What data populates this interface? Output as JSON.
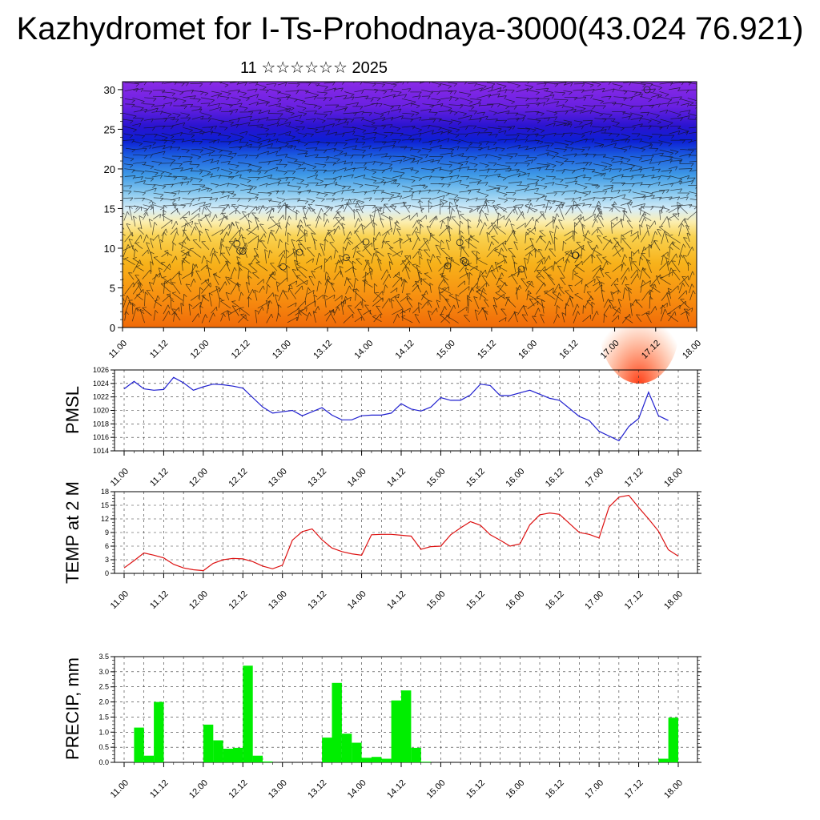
{
  "title": "Kazhydromet for I-Ts-Prohodnaya-3000(43.024 76.921)",
  "subtitle": "11 ☆☆☆☆☆☆ 2025",
  "colors": {
    "pmsl": "#1f1fcf",
    "temp": "#dd1111",
    "precip": "#00ee00"
  },
  "chart_data": [
    {
      "type": "heatmap",
      "title": "",
      "xlabel": "",
      "ylabel": "",
      "x_ticks": [
        "11.00",
        "11.12",
        "12.00",
        "12.12",
        "13.00",
        "13.12",
        "14.00",
        "14.12",
        "15.00",
        "15.12",
        "16.00",
        "16.12",
        "17.00",
        "17.12",
        "18.00"
      ],
      "y_ticks": [
        "0",
        "5",
        "10",
        "15",
        "20",
        "25",
        "30"
      ],
      "ylim": [
        0,
        31
      ],
      "description_bands": [
        {
          "level_range": [
            0,
            12
          ],
          "color": "orange-yellow"
        },
        {
          "level_range": [
            12,
            17
          ],
          "color": "light-yellow/light-blue"
        },
        {
          "level_range": [
            17,
            27
          ],
          "color": "blue"
        },
        {
          "level_range": [
            27,
            31
          ],
          "color": "purple"
        }
      ]
    },
    {
      "type": "line",
      "ylabel": "PMSL",
      "ylim": [
        1014,
        1026
      ],
      "y_ticks": [
        "1014",
        "1016",
        "1018",
        "1020",
        "1022",
        "1024",
        "1026"
      ],
      "x_ticks": [
        "11.00",
        "11.12",
        "12.00",
        "12.12",
        "13.00",
        "13.12",
        "14.00",
        "14.12",
        "15.00",
        "15.12",
        "16.00",
        "16.12",
        "17.00",
        "17.12",
        "18.00"
      ],
      "series": [
        {
          "values": [
            1023.2,
            1024.3,
            1023.2,
            1023.0,
            1023.1,
            1024.9,
            1024.1,
            1023.0,
            1023.5,
            1023.9,
            1023.8,
            1023.6,
            1023.3,
            1021.9,
            1020.5,
            1019.6,
            1019.8,
            1020.0,
            1019.2,
            1019.8,
            1020.4,
            1019.3,
            1018.6,
            1018.6,
            1019.2,
            1019.3,
            1019.3,
            1019.6,
            1021.0,
            1020.2,
            1019.9,
            1020.5,
            1021.9,
            1021.5,
            1021.5,
            1022.3,
            1023.9,
            1023.7,
            1022.2,
            1022.2,
            1022.6,
            1023.0,
            1022.4,
            1021.8,
            1021.5,
            1020.3,
            1019.1,
            1018.5,
            1016.9,
            1016.2,
            1015.5,
            1017.6,
            1018.8,
            1022.7,
            1019.2,
            1018.5
          ]
        }
      ]
    },
    {
      "type": "line",
      "ylabel": "TEMP at 2 M",
      "ylim": [
        0,
        18
      ],
      "y_ticks": [
        "0",
        "3",
        "6",
        "9",
        "12",
        "15",
        "18"
      ],
      "x_ticks": [
        "11.00",
        "11.12",
        "12.00",
        "12.12",
        "13.00",
        "13.12",
        "14.00",
        "14.12",
        "15.00",
        "15.12",
        "16.00",
        "16.12",
        "17.00",
        "17.12",
        "18.00"
      ],
      "series": [
        {
          "values": [
            1.2,
            2.8,
            4.5,
            4.0,
            3.4,
            2.0,
            1.2,
            0.8,
            0.6,
            2.2,
            3.0,
            3.3,
            3.2,
            2.6,
            1.6,
            1.0,
            1.8,
            7.3,
            9.2,
            9.8,
            7.4,
            5.6,
            4.8,
            4.3,
            4.0,
            8.5,
            8.6,
            8.6,
            8.4,
            8.2,
            5.3,
            5.9,
            6.0,
            8.5,
            10.0,
            11.4,
            10.6,
            8.5,
            7.3,
            6.0,
            6.5,
            10.7,
            12.9,
            13.3,
            13.0,
            11.0,
            9.0,
            8.6,
            7.8,
            14.6,
            16.8,
            17.2,
            14.5,
            12.0,
            9.3,
            5.2,
            3.8
          ]
        }
      ]
    },
    {
      "type": "bar",
      "ylabel": "PRECIP, mm",
      "ylim": [
        0,
        3.5
      ],
      "y_ticks": [
        "0.0",
        "0.5",
        "1.0",
        "1.5",
        "2.0",
        "2.5",
        "3.0",
        "3.5"
      ],
      "x_ticks": [
        "11.00",
        "11.12",
        "12.00",
        "12.12",
        "13.00",
        "13.12",
        "14.00",
        "14.12",
        "15.00",
        "15.12",
        "16.00",
        "16.12",
        "17.00",
        "17.12",
        "18.00"
      ],
      "values": [
        0,
        1.15,
        0.22,
        2.0,
        0,
        0,
        0,
        0,
        1.25,
        0.73,
        0.45,
        0.48,
        3.2,
        0.22,
        0.03,
        0,
        0,
        0,
        0,
        0,
        0.82,
        2.63,
        0.95,
        0.65,
        0.15,
        0.18,
        0.12,
        2.05,
        2.38,
        0.48,
        0.02,
        0,
        0,
        0,
        0,
        0,
        0,
        0,
        0,
        0,
        0,
        0,
        0,
        0,
        0,
        0,
        0,
        0,
        0,
        0,
        0,
        0,
        0,
        0,
        0.12,
        1.48
      ]
    }
  ]
}
